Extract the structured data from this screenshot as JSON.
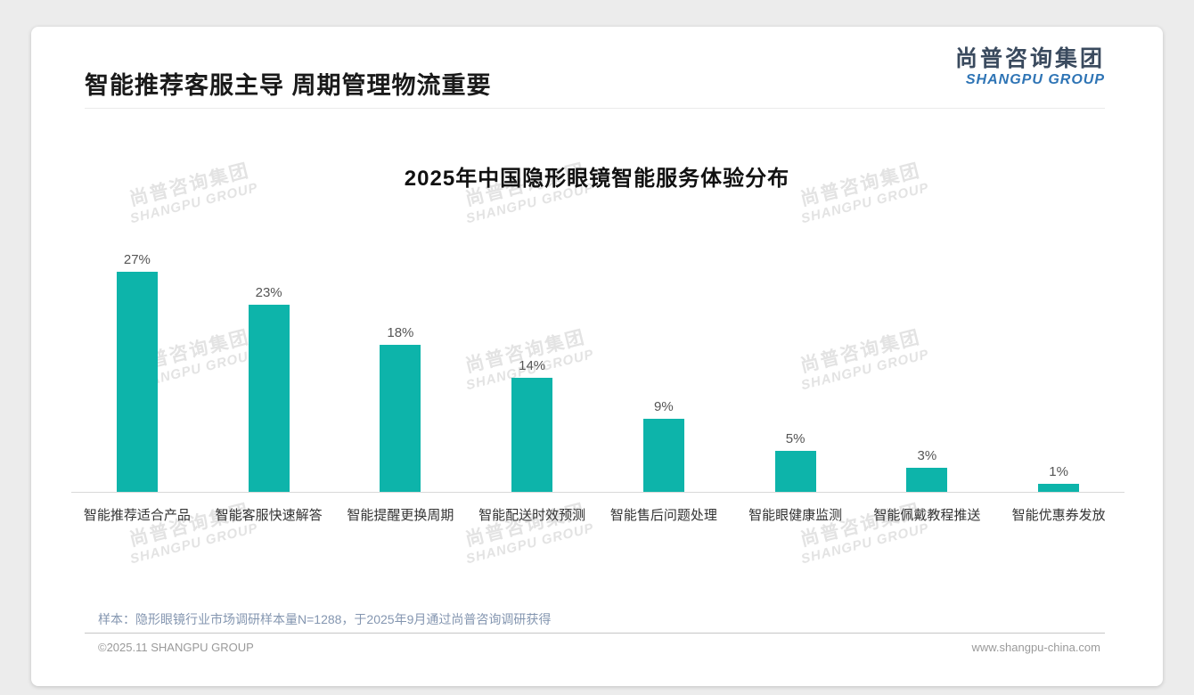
{
  "header": {
    "title": "智能推荐客服主导 周期管理物流重要"
  },
  "logo": {
    "cn": "尚普咨询集团",
    "en": "SHANGPU GROUP"
  },
  "watermark": {
    "cn": "尚普咨询集团",
    "en": "SHANGPU GROUP"
  },
  "chart_data": {
    "type": "bar",
    "title": "2025年中国隐形眼镜智能服务体验分布",
    "categories": [
      "智能推荐适合产品",
      "智能客服快速解答",
      "智能提醒更换周期",
      "智能配送时效预测",
      "智能售后问题处理",
      "智能眼健康监测",
      "智能佩戴教程推送",
      "智能优惠券发放"
    ],
    "values": [
      27,
      23,
      18,
      14,
      9,
      5,
      3,
      1
    ],
    "value_labels": [
      "27%",
      "23%",
      "18%",
      "14%",
      "9%",
      "5%",
      "3%",
      "1%"
    ],
    "unit": "%",
    "bar_color": "#0db4aa",
    "ylim": [
      0,
      30
    ],
    "grid": false,
    "legend": "none",
    "value_label_position": "above-bar"
  },
  "footer": {
    "note": "样本：隐形眼镜行业市场调研样本量N=1288，于2025年9月通过尚普咨询调研获得",
    "copyright": "©2025.11 SHANGPU GROUP",
    "website": "www.shangpu-china.com"
  },
  "colors": {
    "accent-teal": "#0db4aa",
    "logo-navy": "#3a4a5e",
    "logo-blue": "#2e74b5",
    "note-blue-gray": "#8496b0"
  }
}
